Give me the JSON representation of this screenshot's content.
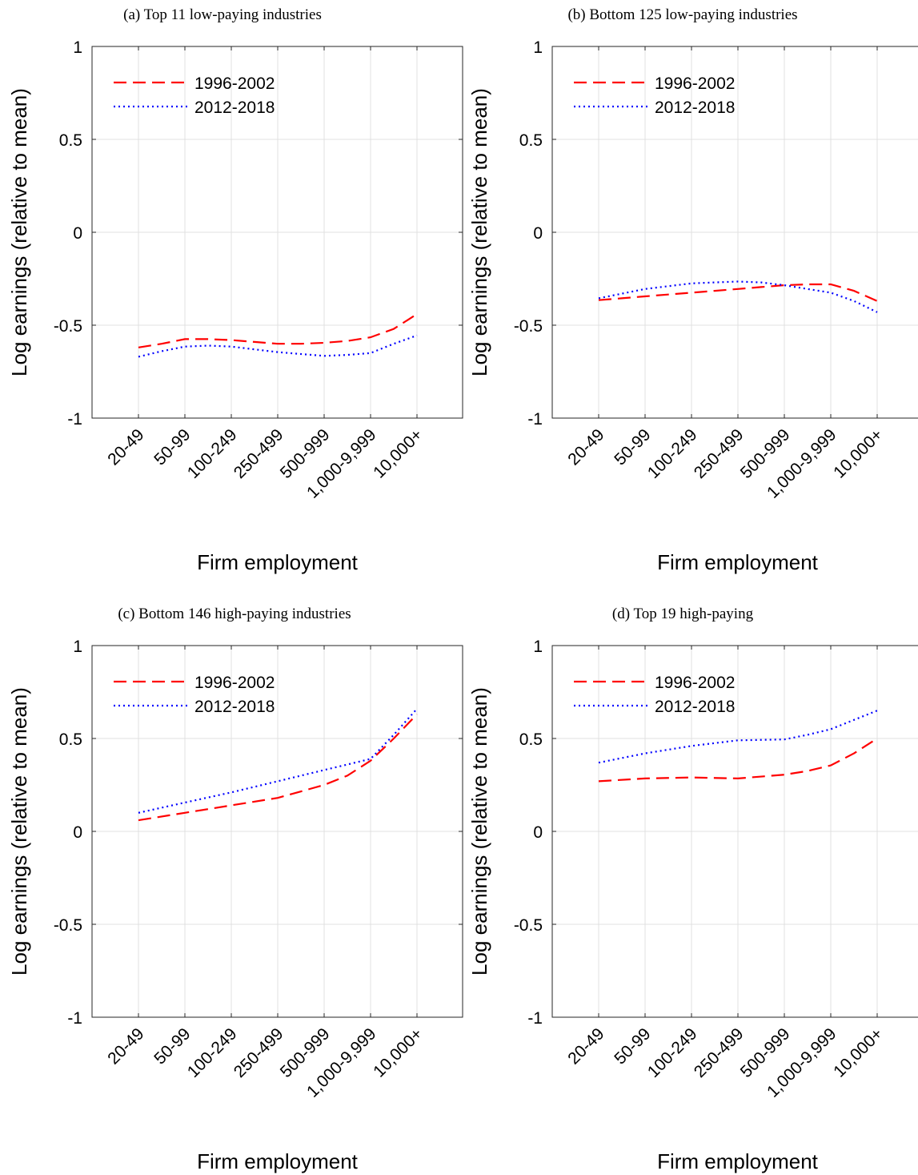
{
  "chart_data": [
    {
      "type": "line",
      "title": "(a) Top 11 low-paying industries",
      "xlabel": "Firm employment",
      "ylabel": "Log earnings (relative to mean)",
      "categories": [
        "20-49",
        "50-99",
        "100-249",
        "250-499",
        "500-999",
        "1,000-9,999",
        "10,000+"
      ],
      "ylim": [
        -1,
        1
      ],
      "yticks": [
        "1",
        "0.5",
        "0",
        "-0.5",
        "-1"
      ],
      "grid": true,
      "legend_position": "top-left",
      "series": [
        {
          "name": "1996-2002",
          "color": "#ff0000",
          "style": "dashed",
          "x": [
            0,
            0.5,
            1,
            1.5,
            2,
            2.5,
            3,
            3.5,
            4,
            4.5,
            5,
            5.5,
            6
          ],
          "values": [
            -0.62,
            -0.6,
            -0.575,
            -0.575,
            -0.58,
            -0.59,
            -0.6,
            -0.6,
            -0.595,
            -0.585,
            -0.565,
            -0.52,
            -0.44
          ]
        },
        {
          "name": "2012-2018",
          "color": "#0000ff",
          "style": "dotted",
          "x": [
            0,
            0.5,
            1,
            1.5,
            2,
            2.5,
            3,
            3.5,
            4,
            4.5,
            5,
            5.5,
            6
          ],
          "values": [
            -0.67,
            -0.64,
            -0.615,
            -0.61,
            -0.615,
            -0.63,
            -0.645,
            -0.655,
            -0.665,
            -0.66,
            -0.65,
            -0.6,
            -0.555
          ]
        }
      ]
    },
    {
      "type": "line",
      "title": "(b) Bottom 125 low-paying industries",
      "xlabel": "Firm employment",
      "ylabel": "Log earnings (relative to mean)",
      "categories": [
        "20-49",
        "50-99",
        "100-249",
        "250-499",
        "500-999",
        "1,000-9,999",
        "10,000+"
      ],
      "ylim": [
        -1,
        1
      ],
      "yticks": [
        "1",
        "0.5",
        "0",
        "-0.5",
        "-1"
      ],
      "grid": true,
      "legend_position": "top-left",
      "series": [
        {
          "name": "1996-2002",
          "color": "#ff0000",
          "style": "dashed",
          "x": [
            0,
            0.5,
            1,
            1.5,
            2,
            2.5,
            3,
            3.5,
            4,
            4.5,
            5,
            5.5,
            6
          ],
          "values": [
            -0.365,
            -0.355,
            -0.345,
            -0.335,
            -0.325,
            -0.315,
            -0.305,
            -0.295,
            -0.285,
            -0.28,
            -0.28,
            -0.315,
            -0.37
          ]
        },
        {
          "name": "2012-2018",
          "color": "#0000ff",
          "style": "dotted",
          "x": [
            0,
            0.5,
            1,
            1.5,
            2,
            2.5,
            3,
            3.5,
            4,
            4.5,
            5,
            5.5,
            6
          ],
          "values": [
            -0.355,
            -0.33,
            -0.305,
            -0.29,
            -0.275,
            -0.27,
            -0.265,
            -0.27,
            -0.285,
            -0.305,
            -0.325,
            -0.37,
            -0.43
          ]
        }
      ]
    },
    {
      "type": "line",
      "title": "(c) Bottom 146 high-paying industries",
      "xlabel": "Firm employment",
      "ylabel": "Log earnings (relative to mean)",
      "categories": [
        "20-49",
        "50-99",
        "100-249",
        "250-499",
        "500-999",
        "1,000-9,999",
        "10,000+"
      ],
      "ylim": [
        -1,
        1
      ],
      "yticks": [
        "1",
        "0.5",
        "0",
        "-0.5",
        "-1"
      ],
      "grid": true,
      "legend_position": "top-left",
      "series": [
        {
          "name": "1996-2002",
          "color": "#ff0000",
          "style": "dashed",
          "x": [
            0,
            1,
            2,
            3,
            4,
            4.5,
            5,
            5.5,
            6
          ],
          "values": [
            0.06,
            0.1,
            0.14,
            0.18,
            0.25,
            0.3,
            0.38,
            0.5,
            0.63
          ]
        },
        {
          "name": "2012-2018",
          "color": "#0000ff",
          "style": "dotted",
          "x": [
            0,
            1,
            2,
            3,
            4,
            4.5,
            5,
            5.5,
            6
          ],
          "values": [
            0.1,
            0.155,
            0.21,
            0.27,
            0.33,
            0.36,
            0.39,
            0.52,
            0.66
          ]
        }
      ]
    },
    {
      "type": "line",
      "title": "(d) Top 19 high-paying",
      "xlabel": "Firm employment",
      "ylabel": "Log earnings (relative to mean)",
      "categories": [
        "20-49",
        "50-99",
        "100-249",
        "250-499",
        "500-999",
        "1,000-9,999",
        "10,000+"
      ],
      "ylim": [
        -1,
        1
      ],
      "yticks": [
        "1",
        "0.5",
        "0",
        "-0.5",
        "-1"
      ],
      "grid": true,
      "legend_position": "top-left",
      "series": [
        {
          "name": "1996-2002",
          "color": "#ff0000",
          "style": "dashed",
          "x": [
            0,
            1,
            2,
            3,
            4,
            4.5,
            5,
            5.5,
            6
          ],
          "values": [
            0.27,
            0.285,
            0.29,
            0.285,
            0.305,
            0.325,
            0.355,
            0.42,
            0.5
          ]
        },
        {
          "name": "2012-2018",
          "color": "#0000ff",
          "style": "dotted",
          "x": [
            0,
            1,
            2,
            3,
            4,
            4.5,
            5,
            5.5,
            6
          ],
          "values": [
            0.37,
            0.42,
            0.46,
            0.49,
            0.495,
            0.52,
            0.55,
            0.6,
            0.65
          ]
        }
      ]
    }
  ]
}
